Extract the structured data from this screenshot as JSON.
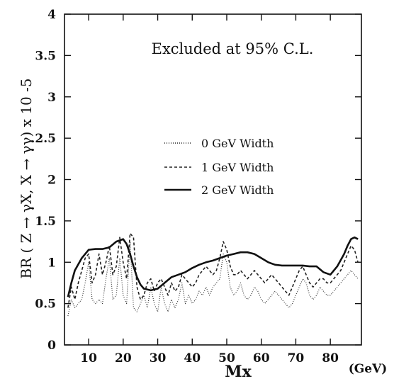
{
  "chart_data": {
    "type": "line",
    "title": "",
    "annotation": "Excluded at 95% C.L.",
    "ylabel": "BR ( Z → γX, X → γγ) x 10 -5",
    "xlabel": "Mx",
    "xunit": "(GeV)",
    "xlim": [
      3,
      89
    ],
    "ylim": [
      0,
      4
    ],
    "xticks": [
      10,
      20,
      30,
      40,
      50,
      60,
      70,
      80
    ],
    "xtick_labels": [
      "10",
      "20",
      "30",
      "40",
      "50",
      "60",
      "70",
      "80"
    ],
    "yticks": [
      0,
      0.5,
      1,
      1.5,
      2,
      2.5,
      3,
      3.5,
      4
    ],
    "ytick_labels": [
      "0",
      "0.5",
      "1",
      "1.5",
      "2",
      "2.5",
      "3",
      "3.5",
      "4"
    ],
    "legend_position": "center",
    "series": [
      {
        "name": "0 GeV  Width",
        "style": "dotted",
        "x": [
          4,
          5,
          6,
          7,
          8,
          9,
          10,
          11,
          12,
          13,
          14,
          15,
          16,
          17,
          18,
          19,
          20,
          21,
          22,
          23,
          24,
          25,
          26,
          27,
          28,
          29,
          30,
          31,
          32,
          33,
          34,
          35,
          36,
          37,
          38,
          39,
          40,
          41,
          42,
          43,
          44,
          45,
          46,
          47,
          48,
          49,
          50,
          51,
          52,
          53,
          54,
          55,
          56,
          57,
          58,
          59,
          60,
          61,
          62,
          63,
          64,
          65,
          66,
          67,
          68,
          69,
          70,
          71,
          72,
          73,
          74,
          75,
          76,
          77,
          78,
          79,
          80,
          81,
          82,
          83,
          84,
          85,
          86,
          87,
          88
        ],
        "y": [
          0.35,
          0.55,
          0.45,
          0.5,
          0.55,
          0.75,
          1.0,
          0.55,
          0.5,
          0.55,
          0.5,
          0.8,
          1.05,
          0.55,
          0.6,
          1.05,
          0.6,
          0.5,
          1.25,
          0.45,
          0.4,
          0.5,
          0.6,
          0.45,
          0.7,
          0.5,
          0.4,
          0.7,
          0.5,
          0.4,
          0.55,
          0.45,
          0.55,
          0.75,
          0.5,
          0.6,
          0.5,
          0.55,
          0.65,
          0.6,
          0.7,
          0.6,
          0.7,
          0.75,
          0.8,
          1.1,
          1.0,
          0.7,
          0.6,
          0.65,
          0.75,
          0.6,
          0.55,
          0.6,
          0.7,
          0.65,
          0.55,
          0.5,
          0.55,
          0.6,
          0.65,
          0.6,
          0.55,
          0.5,
          0.45,
          0.5,
          0.6,
          0.7,
          0.8,
          0.75,
          0.6,
          0.55,
          0.6,
          0.7,
          0.65,
          0.6,
          0.6,
          0.65,
          0.7,
          0.75,
          0.8,
          0.85,
          0.9,
          0.85,
          0.8
        ]
      },
      {
        "name": "1 GeV  Width",
        "style": "dashed",
        "x": [
          4,
          5,
          6,
          7,
          8,
          9,
          10,
          11,
          12,
          13,
          14,
          15,
          16,
          17,
          18,
          19,
          20,
          21,
          22,
          23,
          24,
          25,
          26,
          27,
          28,
          29,
          30,
          31,
          32,
          33,
          34,
          35,
          36,
          37,
          38,
          39,
          40,
          41,
          42,
          43,
          44,
          45,
          46,
          47,
          48,
          49,
          50,
          51,
          52,
          53,
          54,
          55,
          56,
          57,
          58,
          59,
          60,
          61,
          62,
          63,
          64,
          65,
          66,
          67,
          68,
          69,
          70,
          71,
          72,
          73,
          74,
          75,
          76,
          77,
          78,
          79,
          80,
          81,
          82,
          83,
          84,
          85,
          86,
          87,
          88
        ],
        "y": [
          0.45,
          0.7,
          0.55,
          0.75,
          0.9,
          1.05,
          1.1,
          0.75,
          0.85,
          1.1,
          0.85,
          1.0,
          1.2,
          0.85,
          0.95,
          1.3,
          1.0,
          0.8,
          1.35,
          1.3,
          0.7,
          0.55,
          0.6,
          0.75,
          0.8,
          0.65,
          0.75,
          0.8,
          0.7,
          0.6,
          0.75,
          0.65,
          0.7,
          0.85,
          0.8,
          0.75,
          0.7,
          0.75,
          0.85,
          0.9,
          0.95,
          0.9,
          0.85,
          0.9,
          1.05,
          1.25,
          1.15,
          0.95,
          0.85,
          0.85,
          0.9,
          0.85,
          0.8,
          0.85,
          0.9,
          0.85,
          0.8,
          0.75,
          0.8,
          0.85,
          0.8,
          0.75,
          0.7,
          0.65,
          0.6,
          0.7,
          0.8,
          0.9,
          0.95,
          0.85,
          0.75,
          0.7,
          0.75,
          0.8,
          0.8,
          0.75,
          0.75,
          0.8,
          0.85,
          0.9,
          1.0,
          1.1,
          1.2,
          1.15,
          1.0
        ]
      },
      {
        "name": "2 GeV  Width",
        "style": "solid",
        "x": [
          4,
          5,
          6,
          8,
          10,
          12,
          14,
          16,
          18,
          20,
          21,
          22,
          23,
          24,
          25,
          26,
          28,
          30,
          32,
          34,
          36,
          38,
          40,
          42,
          44,
          46,
          48,
          50,
          52,
          54,
          56,
          58,
          60,
          62,
          64,
          66,
          68,
          70,
          72,
          74,
          76,
          78,
          80,
          82,
          84,
          85,
          86,
          87,
          88
        ],
        "y": [
          0.58,
          0.75,
          0.9,
          1.05,
          1.15,
          1.16,
          1.16,
          1.18,
          1.25,
          1.28,
          1.22,
          1.1,
          0.95,
          0.82,
          0.73,
          0.68,
          0.66,
          0.68,
          0.75,
          0.82,
          0.85,
          0.88,
          0.93,
          0.97,
          1.0,
          1.02,
          1.05,
          1.08,
          1.1,
          1.12,
          1.12,
          1.1,
          1.05,
          1.0,
          0.97,
          0.96,
          0.96,
          0.96,
          0.96,
          0.95,
          0.95,
          0.88,
          0.85,
          0.95,
          1.1,
          1.2,
          1.28,
          1.3,
          1.28
        ]
      }
    ]
  }
}
